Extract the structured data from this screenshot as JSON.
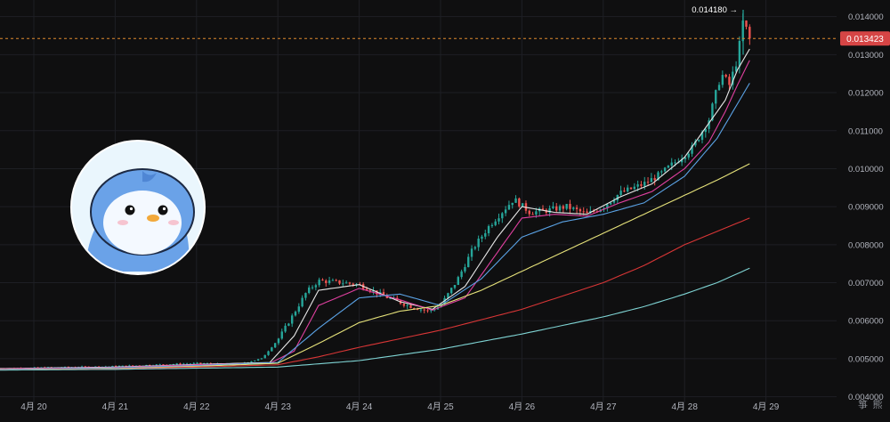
{
  "colors": {
    "background": "#0f0f10",
    "up": "#26a69a",
    "down": "#ef5350",
    "grid": "#1e1f24",
    "axis_text": "#b2b5be",
    "price_line": "#e08a2e",
    "price_badge": "#d64545"
  },
  "logo": {
    "icon": "penguin-avatar-icon"
  },
  "watermark": "箏 熊",
  "chart_data": {
    "type": "candlestick",
    "title": "",
    "ylim": [
      0.00385,
      0.01425
    ],
    "y_ticks": [
      "0.014000",
      "0.013000",
      "0.012000",
      "0.011000",
      "0.010000",
      "0.009000",
      "0.008000",
      "0.007000",
      "0.006000",
      "0.005000",
      "0.004000"
    ],
    "y_tick_values": [
      0.014,
      0.013,
      0.012,
      0.011,
      0.01,
      0.009,
      0.008,
      0.007,
      0.006,
      0.005,
      0.004
    ],
    "x_ticks": [
      "4月 20",
      "4月 21",
      "4月 22",
      "4月 23",
      "4月 24",
      "4月 25",
      "4月 26",
      "4月 27",
      "4月 28",
      "4月 29"
    ],
    "x_tick_days": [
      0,
      1,
      2,
      3,
      4,
      5,
      6,
      7,
      8,
      9
    ],
    "x_range_days": [
      -0.45,
      10.3
    ],
    "last_price": "0.013423",
    "last_price_value": 0.013423,
    "high_label": "0.014180",
    "high_value": 0.01418,
    "high_day": 8.72,
    "candle_waypoints": {
      "days": [
        -0.45,
        0.5,
        1.0,
        1.6,
        2.0,
        2.5,
        2.8,
        3.0,
        3.2,
        3.35,
        3.5,
        3.8,
        4.0,
        4.3,
        4.6,
        4.85,
        5.0,
        5.2,
        5.4,
        5.6,
        5.9,
        6.1,
        6.3,
        6.55,
        6.8,
        7.0,
        7.2,
        7.5,
        7.7,
        7.9,
        8.1,
        8.3,
        8.45,
        8.55,
        8.65,
        8.72,
        8.8
      ],
      "prices": [
        0.00474,
        0.00478,
        0.0048,
        0.00485,
        0.00488,
        0.00485,
        0.005,
        0.0055,
        0.0062,
        0.00675,
        0.00705,
        0.007,
        0.00695,
        0.00665,
        0.0064,
        0.00625,
        0.0064,
        0.00705,
        0.0079,
        0.0085,
        0.0092,
        0.00885,
        0.0089,
        0.009,
        0.0088,
        0.009,
        0.00935,
        0.0096,
        0.00985,
        0.0102,
        0.01055,
        0.0113,
        0.0125,
        0.0122,
        0.0129,
        0.0139,
        0.01342
      ]
    },
    "moving_averages": [
      {
        "color": "#e8e8e8",
        "days": [
          -0.45,
          1,
          2,
          2.9,
          3.2,
          3.5,
          4,
          4.5,
          4.9,
          5.3,
          5.7,
          6.0,
          6.4,
          6.8,
          7.2,
          7.6,
          8.0,
          8.3,
          8.5,
          8.65,
          8.8
        ],
        "values": [
          0.00474,
          0.00478,
          0.00485,
          0.0049,
          0.0056,
          0.0068,
          0.00695,
          0.0065,
          0.0063,
          0.0069,
          0.0082,
          0.009,
          0.00885,
          0.0088,
          0.00925,
          0.0096,
          0.0103,
          0.0112,
          0.0118,
          0.0126,
          0.01315
        ]
      },
      {
        "color": "#e040a0",
        "days": [
          -0.45,
          1,
          2,
          2.9,
          3.2,
          3.5,
          4,
          4.5,
          4.9,
          5.3,
          5.7,
          6.0,
          6.4,
          6.8,
          7.2,
          7.6,
          8.0,
          8.3,
          8.5,
          8.65,
          8.8
        ],
        "values": [
          0.00473,
          0.00477,
          0.00484,
          0.00488,
          0.0052,
          0.0064,
          0.00685,
          0.00655,
          0.00628,
          0.0066,
          0.0078,
          0.0087,
          0.0088,
          0.00875,
          0.0091,
          0.0094,
          0.01,
          0.0107,
          0.0115,
          0.0122,
          0.01285
        ]
      },
      {
        "color": "#5ba3e6",
        "days": [
          -0.45,
          1,
          2,
          3,
          3.5,
          4,
          4.5,
          5,
          5.5,
          6,
          6.5,
          7,
          7.5,
          8,
          8.4,
          8.8
        ],
        "values": [
          0.00472,
          0.00476,
          0.00482,
          0.0049,
          0.0058,
          0.0066,
          0.0067,
          0.0064,
          0.0071,
          0.0082,
          0.0086,
          0.0088,
          0.0091,
          0.0098,
          0.0108,
          0.01225
        ]
      },
      {
        "color": "#e6e27a",
        "days": [
          -0.45,
          1,
          2,
          3,
          3.5,
          4,
          4.5,
          5,
          5.5,
          6,
          6.5,
          7,
          7.5,
          8,
          8.4,
          8.8
        ],
        "values": [
          0.00471,
          0.00474,
          0.0048,
          0.00488,
          0.0054,
          0.00595,
          0.00625,
          0.0064,
          0.0068,
          0.0073,
          0.0078,
          0.0083,
          0.0088,
          0.0093,
          0.0097,
          0.01013
        ]
      },
      {
        "color": "#d93636",
        "days": [
          -0.45,
          1,
          2,
          3,
          3.5,
          4,
          5,
          6,
          7,
          7.5,
          8,
          8.4,
          8.8
        ],
        "values": [
          0.00471,
          0.00473,
          0.00478,
          0.00484,
          0.00505,
          0.0053,
          0.00575,
          0.0063,
          0.007,
          0.00745,
          0.008,
          0.00835,
          0.0087
        ]
      },
      {
        "color": "#7fd4d4",
        "days": [
          -0.45,
          1,
          2,
          3,
          4,
          5,
          6,
          7,
          7.5,
          8,
          8.4,
          8.8
        ],
        "values": [
          0.0047,
          0.00472,
          0.00475,
          0.00478,
          0.00495,
          0.00525,
          0.00565,
          0.0061,
          0.00637,
          0.0067,
          0.007,
          0.00738
        ]
      }
    ]
  }
}
